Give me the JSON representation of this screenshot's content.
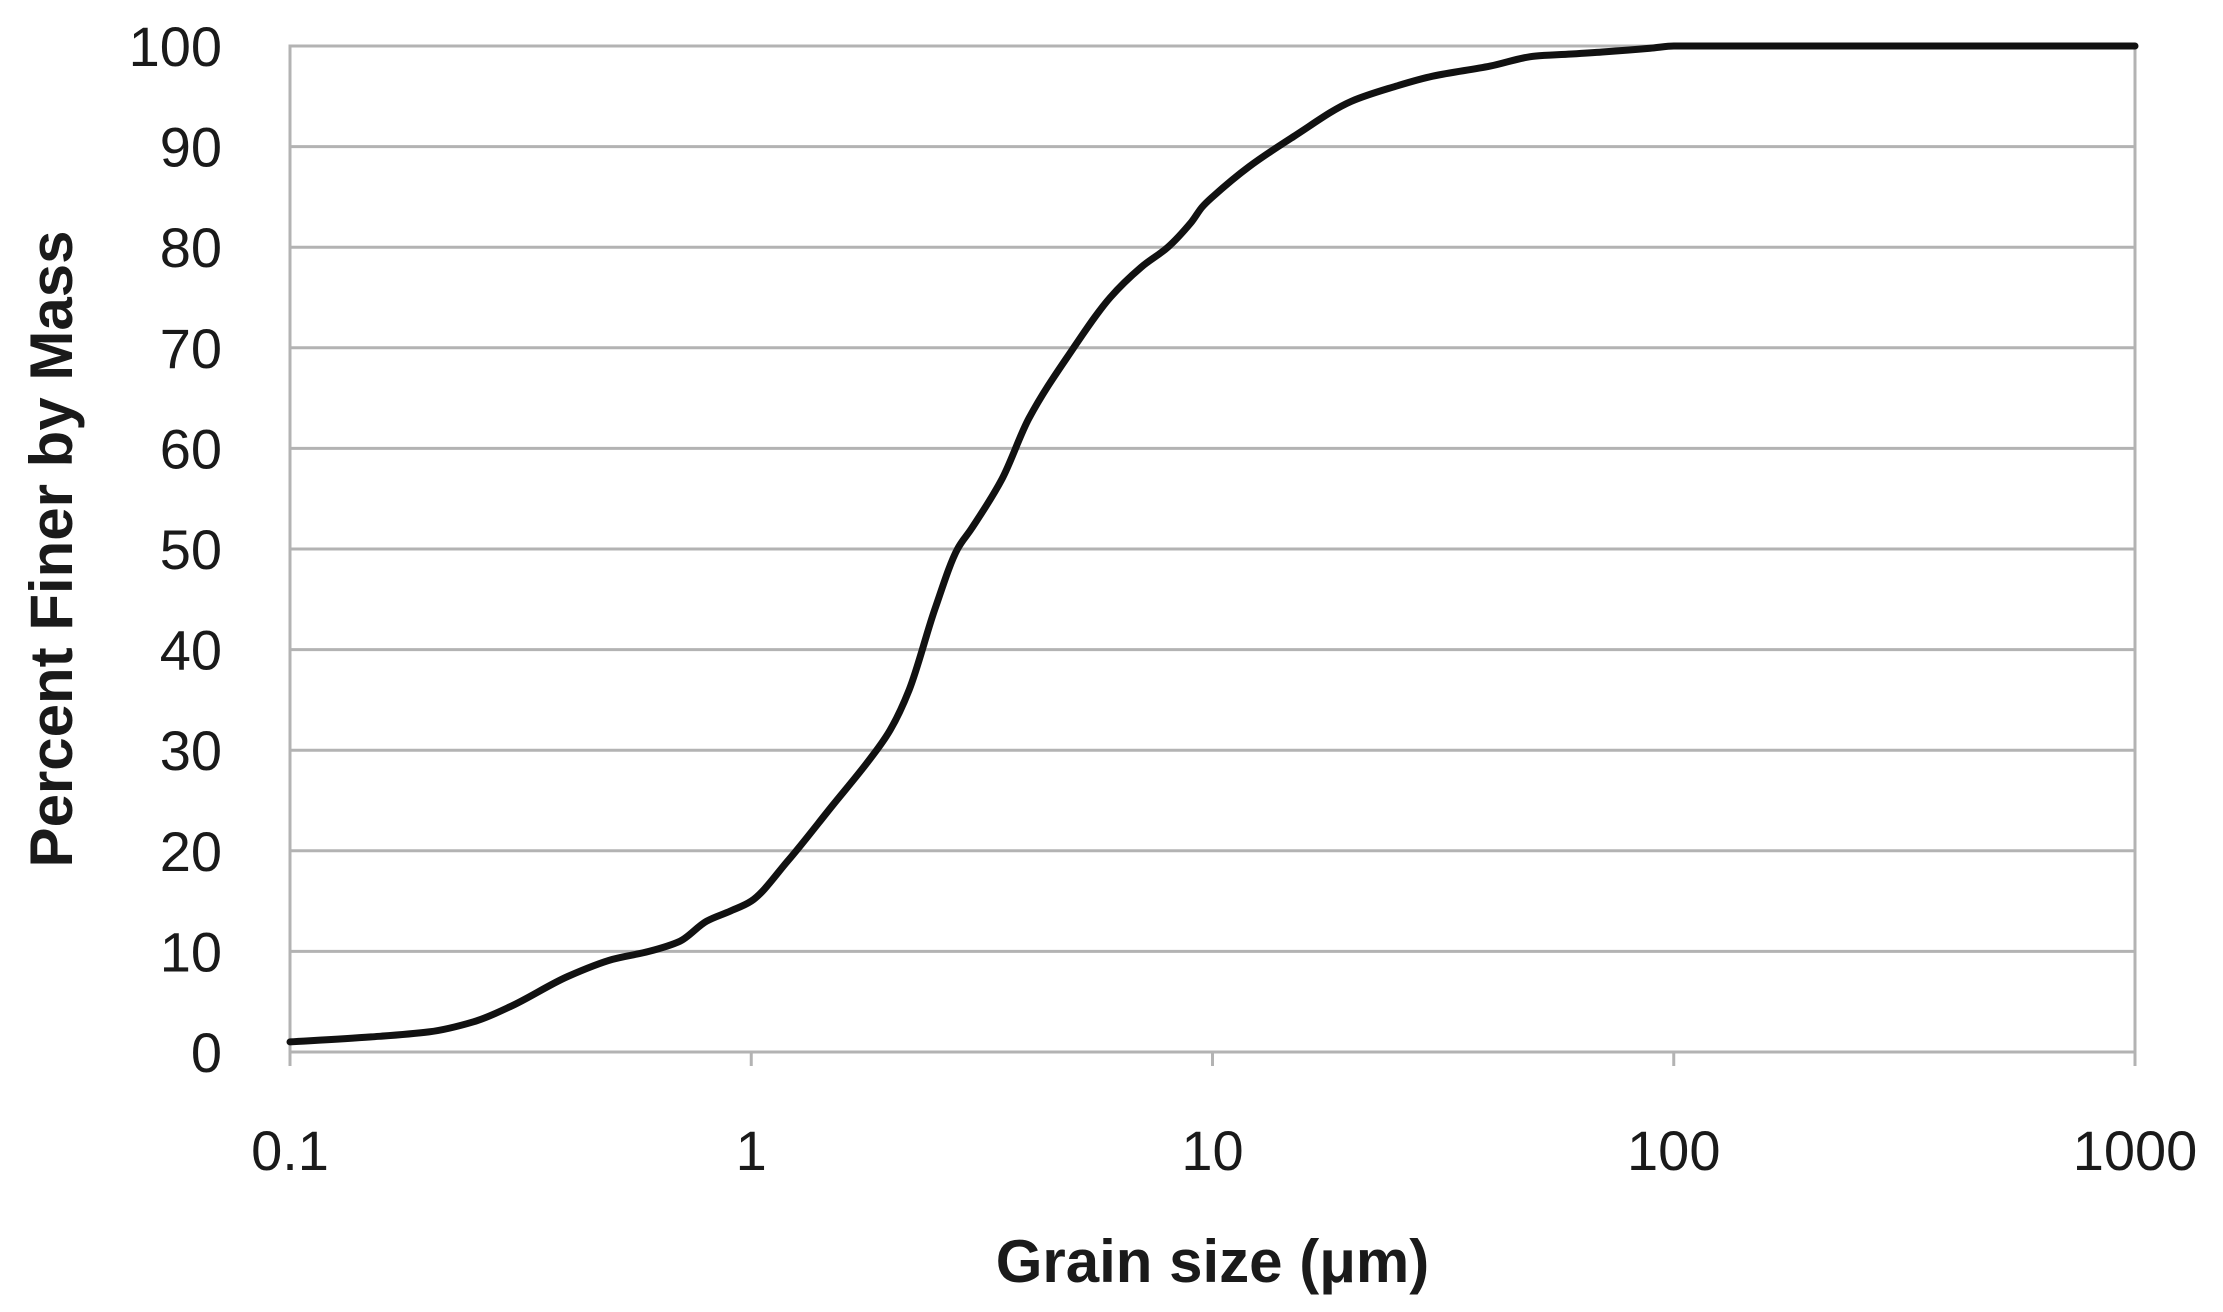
{
  "chart_data": {
    "type": "line",
    "title": "",
    "xlabel": "Grain size (μm)",
    "ylabel": "Percent Finer by Mass",
    "x_scale": "log",
    "xlim": [
      0.1,
      1000
    ],
    "ylim": [
      0,
      100
    ],
    "x_ticks": [
      0.1,
      1,
      10,
      100,
      1000
    ],
    "x_tick_labels": [
      "0.1",
      "1",
      "10",
      "100",
      "1000"
    ],
    "y_ticks": [
      0,
      10,
      20,
      30,
      40,
      50,
      60,
      70,
      80,
      90,
      100
    ],
    "y_tick_labels": [
      "0",
      "10",
      "20",
      "30",
      "40",
      "50",
      "60",
      "70",
      "80",
      "90",
      "100"
    ],
    "grid": "horizontal",
    "legend": "none",
    "line_color": "#111111",
    "grid_color": "#b3b3b3",
    "series": [
      {
        "x": [
          0.1,
          0.15,
          0.2,
          0.25,
          0.3,
          0.4,
          0.5,
          0.6,
          0.7,
          0.8,
          0.9,
          1.0,
          1.2,
          1.5,
          1.8,
          2.0,
          2.2,
          2.5,
          2.8,
          3.0,
          3.5,
          4.0,
          5.0,
          6.0,
          7.0,
          8.0,
          9.0,
          9.5,
          10,
          12,
          15,
          20,
          25,
          30,
          40,
          50,
          60,
          70,
          80,
          90,
          100,
          200,
          500,
          1000
        ],
        "y": [
          1,
          1.5,
          2,
          3,
          4.5,
          7.5,
          9.2,
          10,
          11,
          13,
          14,
          15,
          19,
          24.5,
          29,
          32,
          36,
          44,
          50,
          52,
          57,
          63,
          70,
          75,
          78,
          80,
          82.5,
          84,
          85,
          88,
          91,
          94.5,
          96,
          97,
          98,
          99,
          99.2,
          99.4,
          99.6,
          99.8,
          100,
          100,
          100,
          100
        ]
      }
    ]
  }
}
